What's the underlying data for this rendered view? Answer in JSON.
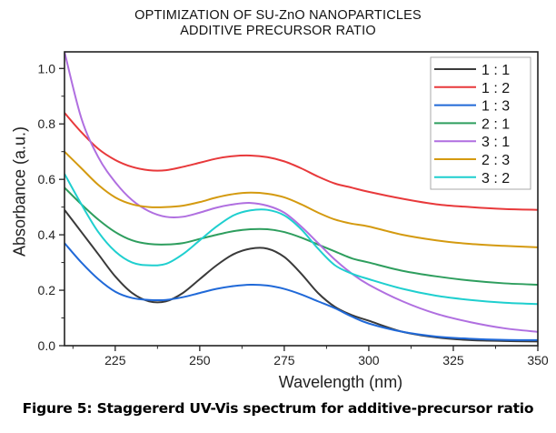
{
  "chart_data": {
    "type": "line",
    "title": "OPTIMIZATION OF SU-ZnO NANOPARTICLES",
    "subtitle": "ADDITIVE PRECURSOR RATIO",
    "xlabel": "Wavelength (nm)",
    "ylabel": "Absorbance (a.u.)",
    "xlim": [
      210,
      350
    ],
    "ylim": [
      0.0,
      1.06
    ],
    "xticks": [
      225,
      250,
      275,
      300,
      325,
      350
    ],
    "xtick_labels": [
      "225",
      "250",
      "275",
      "300",
      "325",
      "350"
    ],
    "yticks": [
      0.0,
      0.2,
      0.4,
      0.6,
      0.8,
      1.0
    ],
    "ytick_labels": [
      "0.0",
      "0.2",
      "0.4",
      "0.6",
      "0.8",
      "1.0"
    ],
    "grid": false,
    "legend_position": "top-right",
    "x": [
      210,
      215,
      220,
      225,
      230,
      235,
      240,
      245,
      250,
      255,
      260,
      265,
      270,
      275,
      280,
      285,
      290,
      295,
      300,
      310,
      320,
      330,
      340,
      350
    ],
    "series": [
      {
        "name": "1 : 1",
        "color": "#3a3a3a",
        "values": [
          0.49,
          0.41,
          0.33,
          0.25,
          0.19,
          0.16,
          0.16,
          0.19,
          0.24,
          0.29,
          0.33,
          0.35,
          0.35,
          0.32,
          0.26,
          0.19,
          0.14,
          0.11,
          0.09,
          0.05,
          0.03,
          0.02,
          0.017,
          0.015
        ]
      },
      {
        "name": "1 : 2",
        "color": "#e8393b",
        "values": [
          0.84,
          0.77,
          0.71,
          0.67,
          0.645,
          0.633,
          0.633,
          0.645,
          0.66,
          0.675,
          0.684,
          0.686,
          0.68,
          0.665,
          0.64,
          0.61,
          0.585,
          0.57,
          0.555,
          0.53,
          0.51,
          0.5,
          0.493,
          0.49
        ]
      },
      {
        "name": "1 : 3",
        "color": "#2069d8",
        "values": [
          0.37,
          0.3,
          0.24,
          0.195,
          0.172,
          0.165,
          0.165,
          0.175,
          0.19,
          0.205,
          0.215,
          0.22,
          0.217,
          0.205,
          0.185,
          0.16,
          0.135,
          0.105,
          0.08,
          0.05,
          0.033,
          0.025,
          0.021,
          0.02
        ]
      },
      {
        "name": "2 : 1",
        "color": "#2e9e5e",
        "values": [
          0.57,
          0.51,
          0.455,
          0.41,
          0.38,
          0.367,
          0.365,
          0.37,
          0.385,
          0.4,
          0.413,
          0.42,
          0.42,
          0.41,
          0.39,
          0.365,
          0.34,
          0.315,
          0.3,
          0.27,
          0.25,
          0.235,
          0.225,
          0.22
        ]
      },
      {
        "name": "3 : 1",
        "color": "#b06fe0",
        "values": [
          1.06,
          0.82,
          0.68,
          0.59,
          0.525,
          0.485,
          0.465,
          0.465,
          0.48,
          0.498,
          0.51,
          0.515,
          0.505,
          0.48,
          0.43,
          0.37,
          0.31,
          0.26,
          0.22,
          0.16,
          0.115,
          0.085,
          0.063,
          0.05
        ]
      },
      {
        "name": "2 : 3",
        "color": "#d49a10",
        "values": [
          0.7,
          0.64,
          0.58,
          0.535,
          0.51,
          0.5,
          0.5,
          0.505,
          0.518,
          0.535,
          0.547,
          0.552,
          0.548,
          0.535,
          0.51,
          0.48,
          0.455,
          0.44,
          0.43,
          0.4,
          0.38,
          0.367,
          0.36,
          0.355
        ]
      },
      {
        "name": "3 : 2",
        "color": "#1fcfcf",
        "values": [
          0.62,
          0.51,
          0.41,
          0.34,
          0.3,
          0.29,
          0.295,
          0.33,
          0.38,
          0.43,
          0.47,
          0.488,
          0.49,
          0.47,
          0.42,
          0.35,
          0.29,
          0.26,
          0.24,
          0.205,
          0.18,
          0.165,
          0.155,
          0.15
        ]
      }
    ]
  },
  "caption": "Figure 5: Staggererd UV-Vis spectrum for additive-precursor ratio"
}
